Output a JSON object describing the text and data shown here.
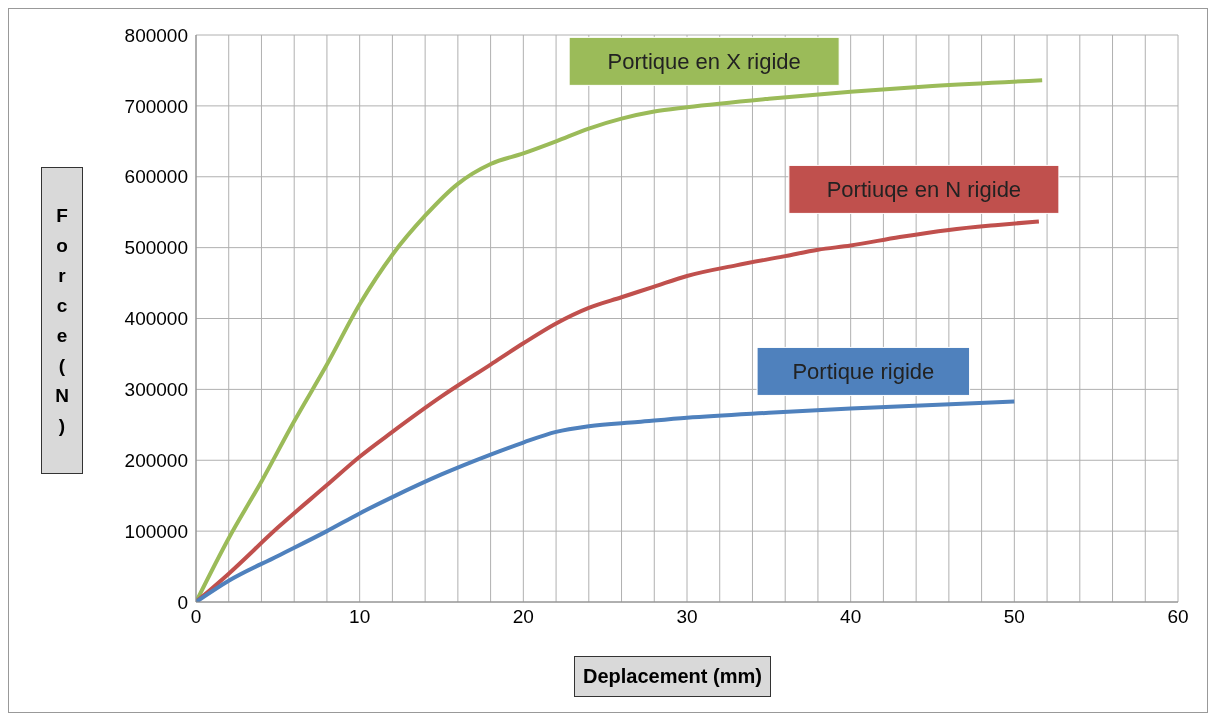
{
  "chart_data": {
    "type": "line",
    "xlabel": "Deplacement (mm)",
    "ylabel": "Force (N)",
    "xlim": [
      0,
      60
    ],
    "xticks": [
      0,
      {
        "value": 2,
        "label": null
      },
      {
        "value": 4,
        "label": null
      },
      {
        "value": 6,
        "label": null
      },
      {
        "value": 8,
        "label": null
      },
      10,
      {
        "value": 12,
        "label": null
      },
      {
        "value": 14,
        "label": null
      },
      {
        "value": 16,
        "label": null
      },
      {
        "value": 18,
        "label": null
      },
      20,
      {
        "value": 22,
        "label": null
      },
      {
        "value": 24,
        "label": null
      },
      {
        "value": 26,
        "label": null
      },
      {
        "value": 28,
        "label": null
      },
      30,
      {
        "value": 32,
        "label": null
      },
      {
        "value": 34,
        "label": null
      },
      {
        "value": 36,
        "label": null
      },
      {
        "value": 38,
        "label": null
      },
      40,
      {
        "value": 42,
        "label": null
      },
      {
        "value": 44,
        "label": null
      },
      {
        "value": 46,
        "label": null
      },
      {
        "value": 48,
        "label": null
      },
      50,
      {
        "value": 52,
        "label": null
      },
      {
        "value": 54,
        "label": null
      },
      {
        "value": 56,
        "label": null
      },
      {
        "value": 58,
        "label": null
      },
      60
    ],
    "ylim": [
      0,
      800000
    ],
    "yticks": [
      0,
      100000,
      200000,
      300000,
      400000,
      500000,
      600000,
      700000,
      800000
    ],
    "grid": true,
    "marker": "none",
    "line_style": "solid",
    "series": [
      {
        "name": "Portique en X rigide",
        "color": "#9bbb59",
        "x": [
          0,
          2,
          4,
          6,
          8,
          10,
          12,
          14,
          16,
          18,
          20,
          22,
          24,
          26,
          28,
          30,
          35,
          40,
          45,
          51.7
        ],
        "values": [
          0,
          90000,
          170000,
          255000,
          335000,
          420000,
          490000,
          545000,
          590000,
          618000,
          633000,
          650000,
          668000,
          682000,
          692000,
          698000,
          710000,
          720000,
          728000,
          736000
        ]
      },
      {
        "name": "Portiuqe en N rigide",
        "color": "#c0504d",
        "x": [
          0,
          2,
          5,
          8,
          10,
          12,
          15,
          18,
          20,
          22,
          24,
          26,
          28,
          30,
          33,
          36,
          38,
          40,
          43,
          46,
          49,
          51.5
        ],
        "values": [
          0,
          40000,
          105000,
          165000,
          205000,
          240000,
          290000,
          335000,
          365000,
          393000,
          415000,
          430000,
          445000,
          460000,
          475000,
          488000,
          497000,
          503000,
          515000,
          525000,
          532000,
          537000
        ]
      },
      {
        "name": "Portique rigide",
        "color": "#4f81bd",
        "x": [
          0,
          2,
          5,
          8,
          10,
          12,
          15,
          18,
          20,
          22,
          24,
          27,
          30,
          35,
          40,
          45,
          50
        ],
        "values": [
          0,
          30000,
          65000,
          100000,
          125000,
          148000,
          180000,
          208000,
          225000,
          240000,
          248000,
          254000,
          260000,
          267000,
          273000,
          278000,
          283000
        ]
      }
    ]
  }
}
